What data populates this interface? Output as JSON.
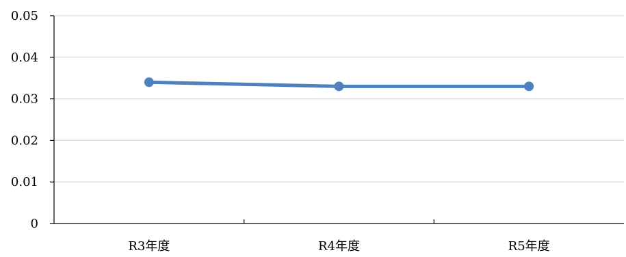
{
  "chart_data": {
    "type": "line",
    "categories": [
      "R3年度",
      "R4年度",
      "R5年度"
    ],
    "series": [
      {
        "values": [
          0.034,
          0.033,
          0.033
        ],
        "color": "#4f81bd"
      }
    ],
    "ylim": [
      0,
      0.05
    ],
    "yticks": [
      "0",
      "0.01",
      "0.02",
      "0.03",
      "0.04",
      "0.05"
    ],
    "grid": true,
    "legend": "none",
    "colors": {
      "grid": "#d9d9d9",
      "axis": "#000000"
    }
  }
}
